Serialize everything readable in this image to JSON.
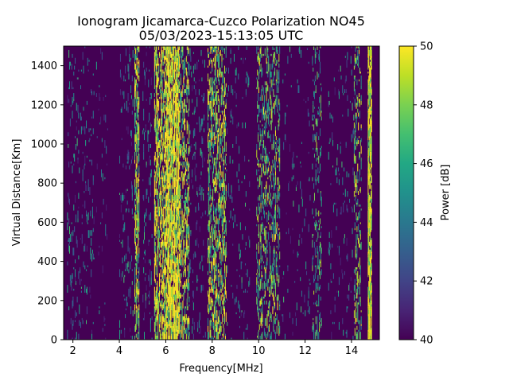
{
  "chart_data": {
    "type": "heatmap",
    "title_line1": "Ionogram Jicamarca-Cuzco Polarization NO45",
    "title_line2": "05/03/2023-15:13:05 UTC",
    "xlabel": "Frequency[MHz]",
    "ylabel": "Virtual Distance[Km]",
    "xlim": [
      1.6,
      15.2
    ],
    "ylim": [
      0,
      1500
    ],
    "xticks": [
      2,
      4,
      6,
      8,
      10,
      12,
      14
    ],
    "yticks": [
      0,
      200,
      400,
      600,
      800,
      1000,
      1200,
      1400
    ],
    "colorbar": {
      "label": "Power [dB]",
      "range": [
        40,
        50
      ],
      "ticks": [
        40,
        42,
        44,
        46,
        48,
        50
      ],
      "colormap": "viridis"
    },
    "background_db": 40,
    "bands": [
      {
        "from_mhz": 1.75,
        "to_mhz": 2.9,
        "density": 0.09,
        "mean_db": 43
      },
      {
        "from_mhz": 3.0,
        "to_mhz": 3.5,
        "density": 0.04,
        "mean_db": 42
      },
      {
        "from_mhz": 4.0,
        "to_mhz": 4.6,
        "density": 0.1,
        "mean_db": 43
      },
      {
        "from_mhz": 4.65,
        "to_mhz": 4.85,
        "density": 0.55,
        "mean_db": 47
      },
      {
        "from_mhz": 5.0,
        "to_mhz": 5.4,
        "density": 0.12,
        "mean_db": 43
      },
      {
        "from_mhz": 5.5,
        "to_mhz": 6.0,
        "density": 0.55,
        "mean_db": 48
      },
      {
        "from_mhz": 6.0,
        "to_mhz": 6.6,
        "density": 0.8,
        "mean_db": 49
      },
      {
        "from_mhz": 6.6,
        "to_mhz": 7.0,
        "density": 0.45,
        "mean_db": 47
      },
      {
        "from_mhz": 7.0,
        "to_mhz": 7.7,
        "density": 0.1,
        "mean_db": 43
      },
      {
        "from_mhz": 7.8,
        "to_mhz": 8.6,
        "density": 0.45,
        "mean_db": 47
      },
      {
        "from_mhz": 8.6,
        "to_mhz": 9.6,
        "density": 0.06,
        "mean_db": 43
      },
      {
        "from_mhz": 9.9,
        "to_mhz": 10.9,
        "density": 0.32,
        "mean_db": 46
      },
      {
        "from_mhz": 11.0,
        "to_mhz": 12.2,
        "density": 0.05,
        "mean_db": 43
      },
      {
        "from_mhz": 12.3,
        "to_mhz": 12.7,
        "density": 0.22,
        "mean_db": 45
      },
      {
        "from_mhz": 13.0,
        "to_mhz": 14.1,
        "density": 0.05,
        "mean_db": 43
      },
      {
        "from_mhz": 14.1,
        "to_mhz": 14.4,
        "density": 0.3,
        "mean_db": 46
      },
      {
        "from_mhz": 14.7,
        "to_mhz": 14.85,
        "density": 0.85,
        "mean_db": 49
      }
    ]
  }
}
